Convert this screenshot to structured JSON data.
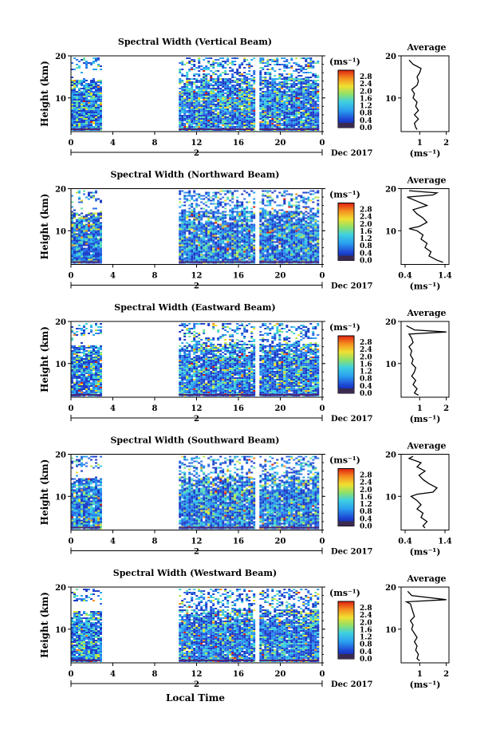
{
  "figure": {
    "xlabel": "Local Time",
    "date_label": "Dec 2017",
    "date_marker": "2",
    "colorbar_unit": "(ms⁻¹)",
    "colorbar_ticks": [
      "2.8",
      "2.4",
      "2.0",
      "1.6",
      "1.2",
      "0.8",
      "0.4",
      "0.0"
    ]
  },
  "chart_data": [
    {
      "type": "heatmap",
      "title": "Spectral Width (Vertical Beam)",
      "ylabel": "Height (km)",
      "ylim": [
        2,
        20
      ],
      "yticks": [
        10,
        20
      ],
      "xlim": [
        0,
        24
      ],
      "xticks": [
        "0",
        "4",
        "8",
        "12",
        "16",
        "20",
        "0"
      ],
      "value_range": [
        0.0,
        2.8
      ],
      "data_blocks_hours": [
        [
          0,
          2.8
        ],
        [
          10.3,
          17.5
        ],
        [
          18,
          23.7
        ]
      ],
      "avg_panel": {
        "title": "Average",
        "xlabel": "(ms⁻¹)",
        "xticks": [
          "1",
          "2"
        ],
        "xlim": [
          0.3,
          2.1
        ],
        "profile": [
          [
            2.5,
            0.9
          ],
          [
            3,
            0.85
          ],
          [
            4,
            0.8
          ],
          [
            5,
            0.95
          ],
          [
            6,
            0.8
          ],
          [
            7,
            0.95
          ],
          [
            8,
            0.85
          ],
          [
            9,
            0.9
          ],
          [
            10,
            0.75
          ],
          [
            11,
            0.8
          ],
          [
            12,
            0.7
          ],
          [
            13,
            0.9
          ],
          [
            14,
            0.95
          ],
          [
            15,
            0.9
          ],
          [
            16,
            1.0
          ],
          [
            17,
            1.05
          ],
          [
            18,
            0.75
          ],
          [
            19,
            0.6
          ]
        ]
      }
    },
    {
      "type": "heatmap",
      "title": "Spectral Width (Northward Beam)",
      "ylabel": "Height (km)",
      "ylim": [
        2,
        20
      ],
      "yticks": [
        10,
        20
      ],
      "xlim": [
        0,
        24
      ],
      "xticks": [
        "0",
        "4",
        "8",
        "12",
        "16",
        "20",
        "0"
      ],
      "value_range": [
        0.0,
        2.8
      ],
      "data_blocks_hours": [
        [
          0,
          2.8
        ],
        [
          10.3,
          17.5
        ],
        [
          18,
          23.7
        ]
      ],
      "avg_panel": {
        "title": "Average",
        "xlabel": "(ms⁻¹)",
        "xticks": [
          "0.4",
          "1.4"
        ],
        "xlim": [
          0.3,
          1.5
        ],
        "profile": [
          [
            2.5,
            1.35
          ],
          [
            3,
            1.2
          ],
          [
            4,
            1.0
          ],
          [
            5,
            1.05
          ],
          [
            6,
            0.9
          ],
          [
            7,
            0.95
          ],
          [
            8,
            0.8
          ],
          [
            9,
            0.85
          ],
          [
            10,
            0.7
          ],
          [
            10.5,
            0.5
          ],
          [
            11,
            0.75
          ],
          [
            12,
            0.95
          ],
          [
            13,
            0.85
          ],
          [
            14,
            0.7
          ],
          [
            15,
            0.6
          ],
          [
            16,
            0.95
          ],
          [
            17,
            0.7
          ],
          [
            18,
            0.45
          ],
          [
            18.5,
            1.1
          ],
          [
            19,
            1.2
          ],
          [
            19.5,
            0.5
          ]
        ]
      }
    },
    {
      "type": "heatmap",
      "title": "Spectral Width (Eastward Beam)",
      "ylabel": "Height (km)",
      "ylim": [
        2,
        20
      ],
      "yticks": [
        10,
        20
      ],
      "xlim": [
        0,
        24
      ],
      "xticks": [
        "0",
        "4",
        "8",
        "12",
        "16",
        "20",
        "0"
      ],
      "value_range": [
        0.0,
        2.8
      ],
      "data_blocks_hours": [
        [
          0,
          2.8
        ],
        [
          10.3,
          17.5
        ],
        [
          18,
          23.7
        ]
      ],
      "avg_panel": {
        "title": "Average",
        "xlabel": "(ms⁻¹)",
        "xticks": [
          "1",
          "2"
        ],
        "xlim": [
          0.3,
          2.1
        ],
        "profile": [
          [
            2.5,
            0.95
          ],
          [
            3,
            0.8
          ],
          [
            4,
            0.9
          ],
          [
            5,
            0.75
          ],
          [
            6,
            0.85
          ],
          [
            7,
            0.7
          ],
          [
            8,
            0.8
          ],
          [
            9,
            0.85
          ],
          [
            10,
            0.7
          ],
          [
            11,
            0.75
          ],
          [
            12,
            0.65
          ],
          [
            13,
            0.7
          ],
          [
            14,
            0.6
          ],
          [
            15,
            0.75
          ],
          [
            16,
            0.7
          ],
          [
            17,
            0.6
          ],
          [
            17.5,
            2.0
          ],
          [
            18,
            0.8
          ],
          [
            19,
            0.5
          ]
        ]
      }
    },
    {
      "type": "heatmap",
      "title": "Spectral Width (Southward Beam)",
      "ylabel": "Height (km)",
      "ylim": [
        2,
        20
      ],
      "yticks": [
        10,
        20
      ],
      "xlim": [
        0,
        24
      ],
      "xticks": [
        "0",
        "4",
        "8",
        "12",
        "16",
        "20",
        "0"
      ],
      "value_range": [
        0.0,
        2.8
      ],
      "data_blocks_hours": [
        [
          0,
          2.8
        ],
        [
          10.3,
          17.5
        ],
        [
          18,
          23.7
        ]
      ],
      "avg_panel": {
        "title": "Average",
        "xlabel": "(ms⁻¹)",
        "xticks": [
          "0.4",
          "1.4"
        ],
        "xlim": [
          0.3,
          1.5
        ],
        "profile": [
          [
            2.5,
            0.9
          ],
          [
            3,
            0.85
          ],
          [
            4,
            0.95
          ],
          [
            5,
            0.8
          ],
          [
            6,
            0.85
          ],
          [
            7,
            0.7
          ],
          [
            8,
            0.8
          ],
          [
            9,
            0.7
          ],
          [
            10,
            0.55
          ],
          [
            10.5,
            0.7
          ],
          [
            11,
            1.1
          ],
          [
            12,
            1.2
          ],
          [
            13,
            1.0
          ],
          [
            14,
            0.85
          ],
          [
            15,
            0.75
          ],
          [
            16,
            0.9
          ],
          [
            17,
            0.7
          ],
          [
            18,
            0.8
          ],
          [
            19,
            0.5
          ],
          [
            19.5,
            0.6
          ]
        ]
      }
    },
    {
      "type": "heatmap",
      "title": "Spectral Width (Westward Beam)",
      "ylabel": "Height (km)",
      "ylim": [
        2,
        20
      ],
      "yticks": [
        10,
        20
      ],
      "xlim": [
        0,
        24
      ],
      "xticks": [
        "0",
        "4",
        "8",
        "12",
        "16",
        "20",
        "0"
      ],
      "value_range": [
        0.0,
        2.8
      ],
      "data_blocks_hours": [
        [
          0,
          2.8
        ],
        [
          10.3,
          17.5
        ],
        [
          18,
          23.7
        ]
      ],
      "avg_panel": {
        "title": "Average",
        "xlabel": "(ms⁻¹)",
        "xticks": [
          "1",
          "2"
        ],
        "xlim": [
          0.3,
          2.1
        ],
        "profile": [
          [
            2.5,
            1.0
          ],
          [
            3,
            0.9
          ],
          [
            4,
            0.95
          ],
          [
            5,
            0.85
          ],
          [
            6,
            0.9
          ],
          [
            7,
            0.8
          ],
          [
            8,
            0.9
          ],
          [
            9,
            0.8
          ],
          [
            10,
            0.7
          ],
          [
            11,
            0.75
          ],
          [
            12,
            0.65
          ],
          [
            13,
            0.8
          ],
          [
            14,
            0.75
          ],
          [
            15,
            0.7
          ],
          [
            16,
            0.65
          ],
          [
            16.5,
            0.5
          ],
          [
            17,
            2.0
          ],
          [
            18,
            0.7
          ],
          [
            19,
            0.55
          ]
        ]
      }
    }
  ]
}
